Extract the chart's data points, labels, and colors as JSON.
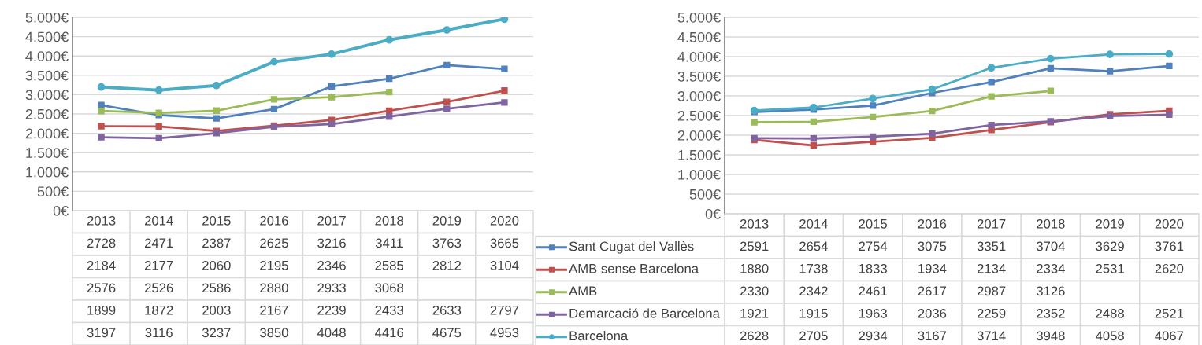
{
  "chart_data": [
    {
      "type": "line",
      "categories": [
        "2013",
        "2014",
        "2015",
        "2016",
        "2017",
        "2018",
        "2019",
        "2020"
      ],
      "ylim": [
        0,
        5000
      ],
      "yticks": [
        {
          "value": 0,
          "label": "0€"
        },
        {
          "value": 500,
          "label": "500€"
        },
        {
          "value": 1000,
          "label": "1.000€"
        },
        {
          "value": 1500,
          "label": "1.500€"
        },
        {
          "value": 2000,
          "label": "2.000€"
        },
        {
          "value": 2500,
          "label": "2.500€"
        },
        {
          "value": 3000,
          "label": "3.000€"
        },
        {
          "value": 3500,
          "label": "3.500€"
        },
        {
          "value": 4000,
          "label": "4.000€"
        },
        {
          "value": 4500,
          "label": "4.500€"
        },
        {
          "value": 5000,
          "label": "5.000€"
        }
      ],
      "grid": "y",
      "data_labels": true,
      "legend": false,
      "series": [
        {
          "color": "#4f81bd",
          "marker": "square",
          "values": [
            2728,
            2471,
            2387,
            2625,
            3216,
            3411,
            3763,
            3665
          ]
        },
        {
          "color": "#c0504d",
          "marker": "square",
          "values": [
            2184,
            2177,
            2060,
            2195,
            2346,
            2585,
            2812,
            3104
          ]
        },
        {
          "color": "#9bbb59",
          "marker": "square",
          "values": [
            2576,
            2526,
            2586,
            2880,
            2933,
            3068,
            null,
            null
          ]
        },
        {
          "color": "#8064a2",
          "marker": "square",
          "values": [
            1899,
            1872,
            2003,
            2167,
            2239,
            2433,
            2633,
            2797
          ]
        },
        {
          "color": "#4bacc6",
          "marker": "circle",
          "values": [
            3197,
            3116,
            3237,
            3850,
            4048,
            4416,
            4675,
            4953
          ]
        }
      ]
    },
    {
      "type": "line",
      "categories": [
        "2013",
        "2014",
        "2015",
        "2016",
        "2017",
        "2018",
        "2019",
        "2020"
      ],
      "ylim": [
        0,
        5000
      ],
      "yticks": [
        {
          "value": 0,
          "label": "0€"
        },
        {
          "value": 500,
          "label": "500€"
        },
        {
          "value": 1000,
          "label": "1.000€"
        },
        {
          "value": 1500,
          "label": "1.500€"
        },
        {
          "value": 2000,
          "label": "2.000€"
        },
        {
          "value": 2500,
          "label": "2.500€"
        },
        {
          "value": 3000,
          "label": "3.000€"
        },
        {
          "value": 3500,
          "label": "3.500€"
        },
        {
          "value": 4000,
          "label": "4.000€"
        },
        {
          "value": 4500,
          "label": "4.500€"
        },
        {
          "value": 5000,
          "label": "5.000€"
        }
      ],
      "grid": "y",
      "data_labels": true,
      "legend": "bottom",
      "series": [
        {
          "name": "Sant Cugat del Vallès",
          "color": "#4f81bd",
          "marker": "square",
          "values": [
            2591,
            2654,
            2754,
            3075,
            3351,
            3704,
            3629,
            3761
          ]
        },
        {
          "name": "AMB sense Barcelona",
          "color": "#c0504d",
          "marker": "square",
          "values": [
            1880,
            1738,
            1833,
            1934,
            2134,
            2334,
            2531,
            2620
          ]
        },
        {
          "name": "AMB",
          "color": "#9bbb59",
          "marker": "square",
          "values": [
            2330,
            2342,
            2461,
            2617,
            2987,
            3126,
            null,
            null
          ]
        },
        {
          "name": "Demarcació de Barcelona",
          "color": "#8064a2",
          "marker": "square",
          "values": [
            1921,
            1915,
            1963,
            2036,
            2259,
            2352,
            2488,
            2521
          ]
        },
        {
          "name": "Barcelona",
          "color": "#4bacc6",
          "marker": "circle",
          "values": [
            2628,
            2705,
            2934,
            3167,
            3714,
            3948,
            4058,
            4067
          ]
        }
      ]
    }
  ]
}
